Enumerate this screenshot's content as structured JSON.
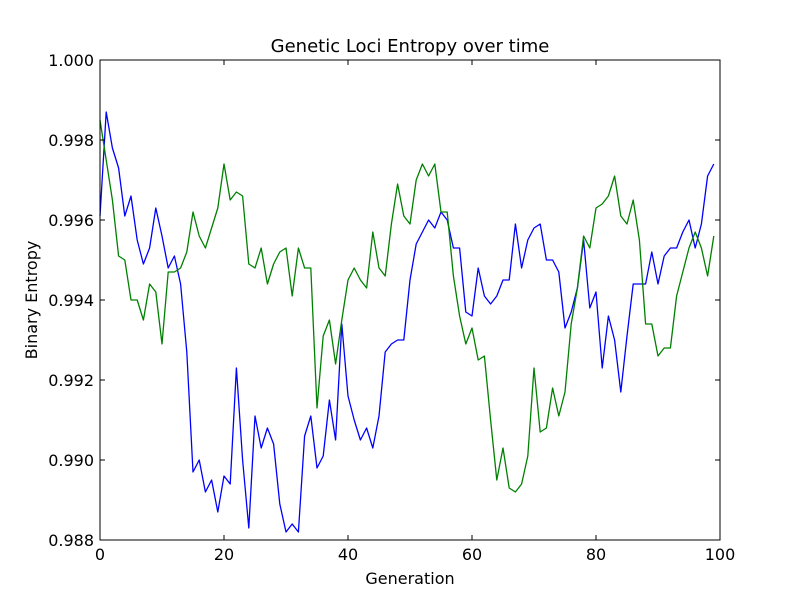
{
  "chart_data": {
    "type": "line",
    "title": "Genetic Loci Entropy over time",
    "xlabel": "Generation",
    "ylabel": "Binary Entropy",
    "xlim": [
      0,
      100
    ],
    "ylim": [
      0.988,
      1.0
    ],
    "xticks": [
      0,
      20,
      40,
      60,
      80,
      100
    ],
    "xtick_labels": [
      "0",
      "20",
      "40",
      "60",
      "80",
      "100"
    ],
    "yticks": [
      0.988,
      0.99,
      0.992,
      0.994,
      0.996,
      0.998,
      1.0
    ],
    "ytick_labels": [
      "0.988",
      "0.990",
      "0.992",
      "0.994",
      "0.996",
      "0.998",
      "1.000"
    ],
    "grid": false,
    "x": [
      0,
      1,
      2,
      3,
      4,
      5,
      6,
      7,
      8,
      9,
      10,
      11,
      12,
      13,
      14,
      15,
      16,
      17,
      18,
      19,
      20,
      21,
      22,
      23,
      24,
      25,
      26,
      27,
      28,
      29,
      30,
      31,
      32,
      33,
      34,
      35,
      36,
      37,
      38,
      39,
      40,
      41,
      42,
      43,
      44,
      45,
      46,
      47,
      48,
      49,
      50,
      51,
      52,
      53,
      54,
      55,
      56,
      57,
      58,
      59,
      60,
      61,
      62,
      63,
      64,
      65,
      66,
      67,
      68,
      69,
      70,
      71,
      72,
      73,
      74,
      75,
      76,
      77,
      78,
      79,
      80,
      81,
      82,
      83,
      84,
      85,
      86,
      87,
      88,
      89,
      90,
      91,
      92,
      93,
      94,
      95,
      96,
      97,
      98,
      99
    ],
    "series": [
      {
        "color": "#0000ff",
        "values": [
          0.9961,
          0.9987,
          0.9978,
          0.9973,
          0.9961,
          0.9966,
          0.9955,
          0.9949,
          0.9953,
          0.9963,
          0.9956,
          0.9948,
          0.9951,
          0.9944,
          0.9927,
          0.9897,
          0.99,
          0.9892,
          0.9895,
          0.9887,
          0.9896,
          0.9894,
          0.9923,
          0.99,
          0.9883,
          0.9911,
          0.9903,
          0.9908,
          0.9904,
          0.9889,
          0.9882,
          0.9884,
          0.9882,
          0.9906,
          0.9911,
          0.9898,
          0.9901,
          0.9915,
          0.9905,
          0.9934,
          0.9916,
          0.991,
          0.9905,
          0.9908,
          0.9903,
          0.9911,
          0.9927,
          0.9929,
          0.993,
          0.993,
          0.9945,
          0.9954,
          0.9957,
          0.996,
          0.9958,
          0.9962,
          0.996,
          0.9953,
          0.9953,
          0.9937,
          0.9936,
          0.9948,
          0.9941,
          0.9939,
          0.9941,
          0.9945,
          0.9945,
          0.9959,
          0.9948,
          0.9955,
          0.9958,
          0.9959,
          0.995,
          0.995,
          0.9947,
          0.9933,
          0.9937,
          0.9943,
          0.9955,
          0.9938,
          0.9942,
          0.9923,
          0.9936,
          0.993,
          0.9917,
          0.9931,
          0.9944,
          0.9944,
          0.9944,
          0.9952,
          0.9944,
          0.9951,
          0.9953,
          0.9953,
          0.9957,
          0.996,
          0.9953,
          0.9959,
          0.9971,
          0.9974
        ]
      },
      {
        "color": "#008000",
        "values": [
          0.9985,
          0.9975,
          0.9965,
          0.9951,
          0.995,
          0.994,
          0.994,
          0.9935,
          0.9944,
          0.9942,
          0.9929,
          0.9947,
          0.9947,
          0.9948,
          0.9952,
          0.9962,
          0.9956,
          0.9953,
          0.9958,
          0.9963,
          0.9974,
          0.9965,
          0.9967,
          0.9966,
          0.9949,
          0.9948,
          0.9953,
          0.9944,
          0.9949,
          0.9952,
          0.9953,
          0.9941,
          0.9953,
          0.9948,
          0.9948,
          0.9913,
          0.9931,
          0.9935,
          0.9924,
          0.9935,
          0.9945,
          0.9948,
          0.9945,
          0.9943,
          0.9957,
          0.9948,
          0.9946,
          0.9959,
          0.9969,
          0.9961,
          0.9959,
          0.997,
          0.9974,
          0.9971,
          0.9974,
          0.9962,
          0.9962,
          0.9946,
          0.9936,
          0.9929,
          0.9933,
          0.9925,
          0.9926,
          0.991,
          0.9895,
          0.9903,
          0.9893,
          0.9892,
          0.9894,
          0.9901,
          0.9923,
          0.9907,
          0.9908,
          0.9918,
          0.9911,
          0.9917,
          0.9934,
          0.9943,
          0.9956,
          0.9953,
          0.9963,
          0.9964,
          0.9966,
          0.9971,
          0.9961,
          0.9959,
          0.9965,
          0.9955,
          0.9934,
          0.9934,
          0.9926,
          0.9928,
          0.9928,
          0.9941,
          0.9947,
          0.9953,
          0.9957,
          0.9953,
          0.9946,
          0.9956
        ]
      }
    ]
  }
}
